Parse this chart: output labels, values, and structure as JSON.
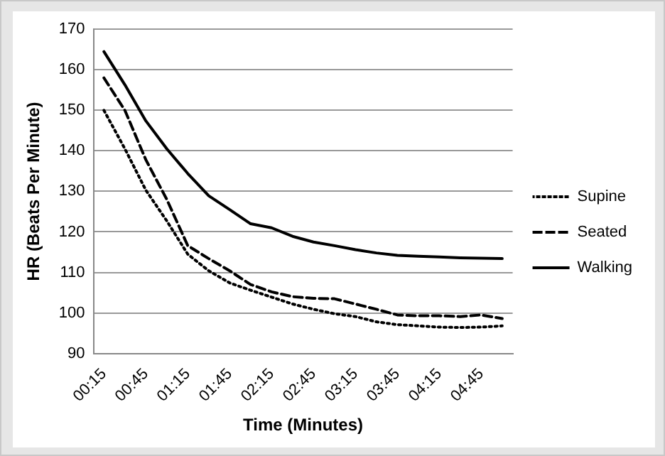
{
  "chart_data": {
    "type": "line",
    "xlabel": "Time (Minutes)",
    "ylabel": "HR (Beats Per Minute)",
    "categories": [
      "00:15",
      null,
      "00:45",
      null,
      "01:15",
      null,
      "01:45",
      null,
      "02:15",
      null,
      "02:45",
      null,
      "03:15",
      null,
      "03:45",
      null,
      "04:15",
      null,
      "04:45",
      null
    ],
    "series": [
      {
        "name": "Supine",
        "color": "#000000",
        "line_style": "dotted",
        "values": [
          150,
          140.5,
          130.3,
          122.7,
          114.5,
          110.4,
          107.4,
          105.6,
          103.9,
          102.2,
          100.9,
          99.8,
          99.1,
          97.8,
          97.1,
          96.8,
          96.5,
          96.4,
          96.5,
          96.8
        ]
      },
      {
        "name": "Seated",
        "color": "#000000",
        "line_style": "dashed",
        "values": [
          158,
          150,
          137.8,
          128,
          116.6,
          113.4,
          110.4,
          107,
          105.2,
          104,
          103.6,
          103.5,
          102.2,
          100.9,
          99.5,
          99.3,
          99.3,
          99.1,
          99.5,
          98.6
        ]
      },
      {
        "name": "Walking",
        "color": "#000000",
        "line_style": "solid",
        "values": [
          164.5,
          156.3,
          147.4,
          140.5,
          134.4,
          128.9,
          125.5,
          122,
          121,
          118.9,
          117.5,
          116.6,
          115.6,
          114.8,
          114.2,
          114,
          113.8,
          113.6,
          113.5,
          113.4
        ]
      }
    ],
    "ylim": [
      90,
      170
    ],
    "yticks": [
      90,
      100,
      110,
      120,
      130,
      140,
      150,
      160,
      170
    ],
    "grid": "y",
    "legend": "right",
    "marker": "none"
  }
}
